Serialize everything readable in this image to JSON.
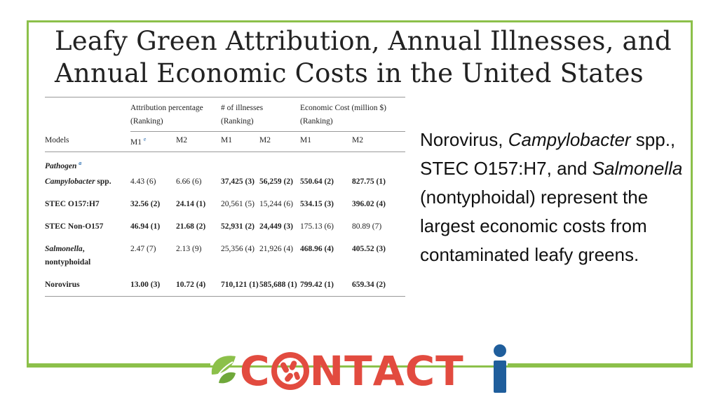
{
  "title": {
    "line1": "Leafy Green Attribution, Annual Illnesses, and",
    "line2": "Annual Economic Costs in the United States"
  },
  "table": {
    "group_headers": [
      {
        "line1": "Attribution percentage",
        "line2": "(Ranking)"
      },
      {
        "line1": "# of illnesses",
        "line2": "(Ranking)"
      },
      {
        "line1": "Economic Cost (million $)",
        "line2": "(Ranking)"
      }
    ],
    "models_label": "Models",
    "sub_headers": [
      "M1",
      "M2",
      "M1",
      "M2",
      "M1",
      "M2"
    ],
    "m1_footnote": "e",
    "section_label": "Pathogen",
    "section_footnote": "a",
    "rows": [
      {
        "pathogen": "Campylobacter",
        "pathogen_suffix": " spp.",
        "cells": [
          "4.43 (6)",
          "6.66 (6)",
          "37,425 (3)",
          "56,259 (2)",
          "550.64 (2)",
          "827.75 (1)"
        ]
      },
      {
        "pathogen": "STEC O157:H7",
        "pathogen_suffix": "",
        "cells": [
          "32.56 (2)",
          "24.14 (1)",
          "20,561 (5)",
          "15,244 (6)",
          "534.15 (3)",
          "396.02 (4)"
        ]
      },
      {
        "pathogen": "STEC Non-O157",
        "pathogen_suffix": "",
        "cells": [
          "46.94 (1)",
          "21.68 (2)",
          "52,931 (2)",
          "24,449 (3)",
          "175.13 (6)",
          "80.89 (7)"
        ]
      },
      {
        "pathogen": "Salmonella",
        "pathogen_suffix": ", nontyphoidal",
        "cells": [
          "2.47 (7)",
          "2.13 (9)",
          "25,356 (4)",
          "21,926 (4)",
          "468.96 (4)",
          "405.52 (3)"
        ]
      },
      {
        "pathogen": "Norovirus",
        "pathogen_suffix": "",
        "cells": [
          "13.00 (3)",
          "10.72 (4)",
          "710,121 (1)",
          "585,688 (1)",
          "799.42 (1)",
          "659.34 (2)"
        ]
      }
    ]
  },
  "summary": {
    "part1": "Norovirus, ",
    "campy": "Campylobacter",
    "part2": " spp., STEC O157:H7, and ",
    "salmonella": "Salmonella",
    "part3": " (nontyphoidal) represent the largest economic costs from contaminated leafy greens."
  },
  "logo": {
    "letters": [
      "C",
      "O",
      "N",
      "T",
      "A",
      "C",
      "T"
    ],
    "text": "CONTACTi",
    "red": "#e24b3f",
    "green": "#8cc04a",
    "blue": "#1f5e9c"
  }
}
